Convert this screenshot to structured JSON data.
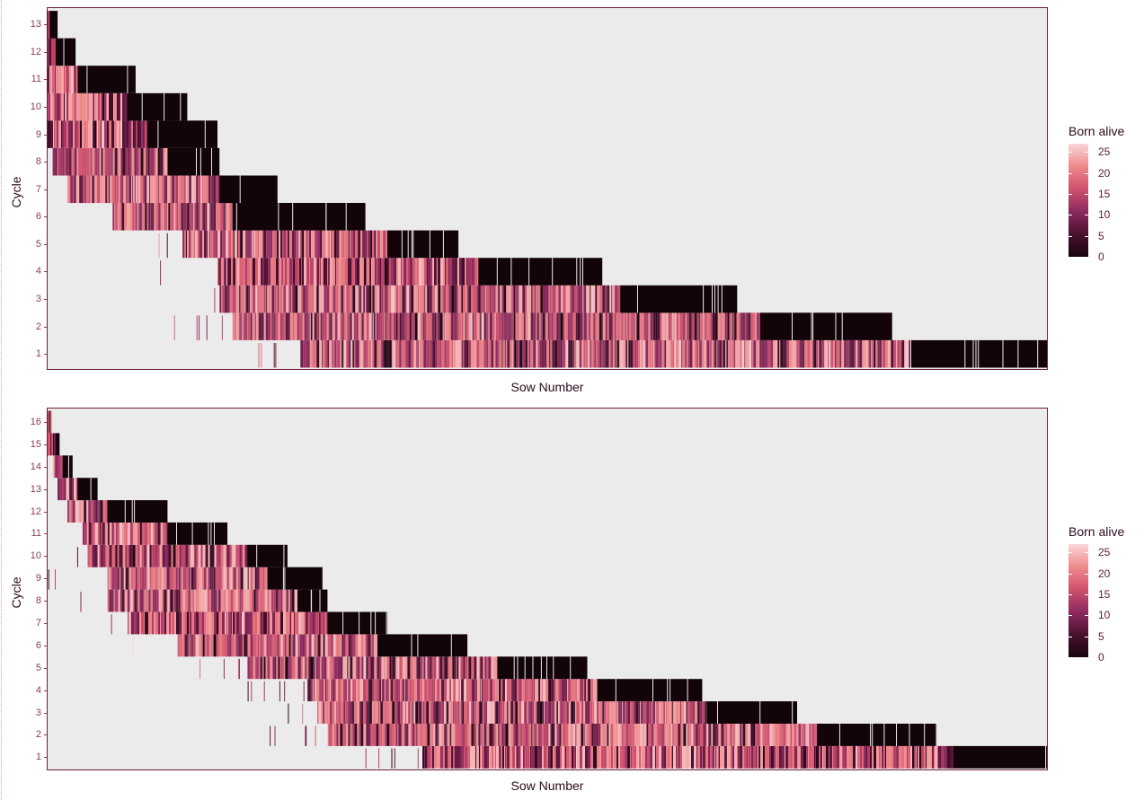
{
  "colors": {
    "panel_background": "#ebebeb",
    "border": "#6e1f3a",
    "scale_low": "#1a0510",
    "scale_mid": "#8c2a5e",
    "scale_high": "#f9d6d9",
    "empty_cell": "#120408"
  },
  "chart_data": [
    {
      "type": "heatmap",
      "xlabel": "Sow Number",
      "ylabel": "Cycle",
      "y_ticks": [
        "1",
        "2",
        "3",
        "4",
        "5",
        "6",
        "7",
        "8",
        "9",
        "10",
        "11",
        "12",
        "13"
      ],
      "ylim": [
        1,
        13
      ],
      "legend": {
        "title": "Born alive",
        "placement": "right",
        "ticks": [
          "25",
          "20",
          "15",
          "10",
          "5",
          "0"
        ],
        "tick_values": [
          25,
          20,
          15,
          10,
          5,
          0
        ],
        "range": [
          0,
          27
        ]
      },
      "cycle_spans": [
        {
          "cycle": 1,
          "sow_start": 0.253,
          "sow_end": 1.0,
          "empty_from": 0.863
        },
        {
          "cycle": 2,
          "sow_start": 0.185,
          "sow_end": 0.845,
          "empty_from": 0.713
        },
        {
          "cycle": 3,
          "sow_start": 0.172,
          "sow_end": 0.69,
          "empty_from": 0.573
        },
        {
          "cycle": 4,
          "sow_start": 0.17,
          "sow_end": 0.555,
          "empty_from": 0.431
        },
        {
          "cycle": 5,
          "sow_start": 0.135,
          "sow_end": 0.411,
          "empty_from": 0.34
        },
        {
          "cycle": 6,
          "sow_start": 0.065,
          "sow_end": 0.318,
          "empty_from": 0.185
        },
        {
          "cycle": 7,
          "sow_start": 0.02,
          "sow_end": 0.23,
          "empty_from": 0.172
        },
        {
          "cycle": 8,
          "sow_start": 0.005,
          "sow_end": 0.172,
          "empty_from": 0.12
        },
        {
          "cycle": 9,
          "sow_start": 0.0,
          "sow_end": 0.17,
          "empty_from": 0.1
        },
        {
          "cycle": 10,
          "sow_start": 0.0,
          "sow_end": 0.14,
          "empty_from": 0.08
        },
        {
          "cycle": 11,
          "sow_start": 0.0,
          "sow_end": 0.088,
          "empty_from": 0.03
        },
        {
          "cycle": 12,
          "sow_start": 0.0,
          "sow_end": 0.028,
          "empty_from": 0.008
        },
        {
          "cycle": 13,
          "sow_start": 0.0,
          "sow_end": 0.01,
          "empty_from": 0.002
        }
      ]
    },
    {
      "type": "heatmap",
      "xlabel": "Sow Number",
      "ylabel": "Cycle",
      "y_ticks": [
        "1",
        "2",
        "3",
        "4",
        "5",
        "6",
        "7",
        "8",
        "9",
        "10",
        "11",
        "12",
        "13",
        "14",
        "15",
        "16"
      ],
      "ylim": [
        1,
        16
      ],
      "legend": {
        "title": "Born alive",
        "placement": "right",
        "ticks": [
          "25",
          "20",
          "15",
          "10",
          "5",
          "0"
        ],
        "tick_values": [
          25,
          20,
          15,
          10,
          5,
          0
        ],
        "range": [
          0,
          27
        ]
      },
      "cycle_spans": [
        {
          "cycle": 1,
          "sow_start": 0.375,
          "sow_end": 1.0,
          "empty_from": 0.906
        },
        {
          "cycle": 2,
          "sow_start": 0.28,
          "sow_end": 0.89,
          "empty_from": 0.77
        },
        {
          "cycle": 3,
          "sow_start": 0.27,
          "sow_end": 0.75,
          "empty_from": 0.66
        },
        {
          "cycle": 4,
          "sow_start": 0.26,
          "sow_end": 0.655,
          "empty_from": 0.55
        },
        {
          "cycle": 5,
          "sow_start": 0.2,
          "sow_end": 0.54,
          "empty_from": 0.45
        },
        {
          "cycle": 6,
          "sow_start": 0.13,
          "sow_end": 0.42,
          "empty_from": 0.33
        },
        {
          "cycle": 7,
          "sow_start": 0.08,
          "sow_end": 0.34,
          "empty_from": 0.28
        },
        {
          "cycle": 8,
          "sow_start": 0.06,
          "sow_end": 0.28,
          "empty_from": 0.25
        },
        {
          "cycle": 9,
          "sow_start": 0.06,
          "sow_end": 0.275,
          "empty_from": 0.22
        },
        {
          "cycle": 10,
          "sow_start": 0.04,
          "sow_end": 0.24,
          "empty_from": 0.2
        },
        {
          "cycle": 11,
          "sow_start": 0.035,
          "sow_end": 0.18,
          "empty_from": 0.12
        },
        {
          "cycle": 12,
          "sow_start": 0.02,
          "sow_end": 0.12,
          "empty_from": 0.06
        },
        {
          "cycle": 13,
          "sow_start": 0.01,
          "sow_end": 0.05,
          "empty_from": 0.03
        },
        {
          "cycle": 14,
          "sow_start": 0.005,
          "sow_end": 0.025,
          "empty_from": 0.015
        },
        {
          "cycle": 15,
          "sow_start": 0.0,
          "sow_end": 0.012,
          "empty_from": 0.008
        },
        {
          "cycle": 16,
          "sow_start": 0.0,
          "sow_end": 0.003,
          "empty_from": 0.002
        }
      ]
    }
  ]
}
